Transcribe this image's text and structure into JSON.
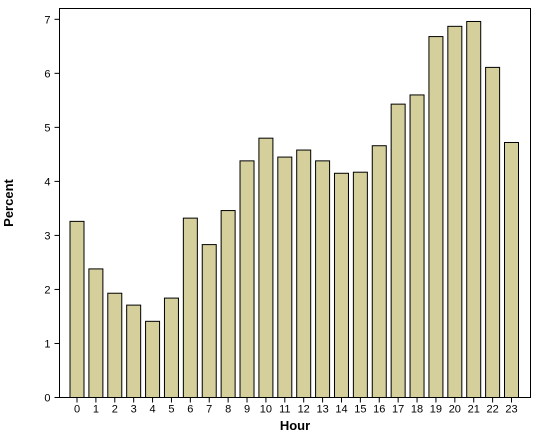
{
  "chart_data": {
    "type": "bar",
    "title": "",
    "xlabel": "Hour",
    "ylabel": "Percent",
    "categories": [
      "0",
      "1",
      "2",
      "3",
      "4",
      "5",
      "6",
      "7",
      "8",
      "9",
      "10",
      "11",
      "12",
      "13",
      "14",
      "15",
      "16",
      "17",
      "18",
      "19",
      "20",
      "21",
      "22",
      "23"
    ],
    "values": [
      3.26,
      2.38,
      1.93,
      1.71,
      1.41,
      1.84,
      3.32,
      2.83,
      3.46,
      4.38,
      4.8,
      4.45,
      4.58,
      4.38,
      4.15,
      4.17,
      4.66,
      5.43,
      5.6,
      6.68,
      6.87,
      6.96,
      6.11,
      4.72
    ],
    "ylim": [
      0,
      7.2
    ],
    "yticks": [
      0,
      1,
      2,
      3,
      4,
      5,
      6,
      7
    ],
    "grid": false,
    "legend": "none",
    "colors": {
      "bar_fill": "#d5cf9c",
      "bar_stroke": "#000000",
      "frame": "#000000",
      "background": "#ffffff"
    }
  }
}
